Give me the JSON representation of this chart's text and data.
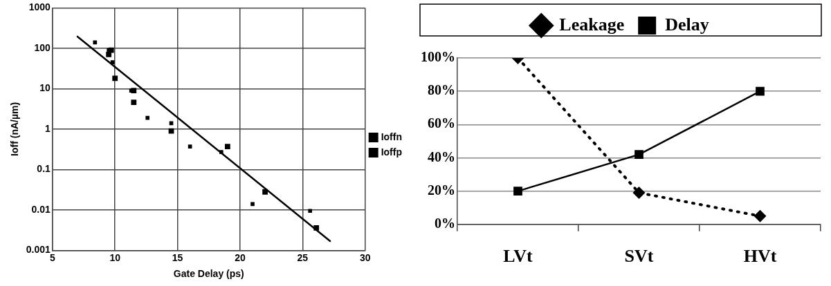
{
  "chart_data": [
    {
      "type": "scatter",
      "xlabel": "Gate Delay (ps)",
      "ylabel": "Ioff (nA/µm)",
      "log": "y",
      "grid": true,
      "legend": "right",
      "marker": "square",
      "xlim": [
        5,
        30
      ],
      "xticks": [
        5,
        10,
        15,
        20,
        25,
        30
      ],
      "ylim": [
        0.001,
        1000
      ],
      "yticks": [
        0.001,
        0.01,
        0.1,
        1,
        10,
        100,
        1000
      ],
      "series": [
        {
          "name": "Ioffn",
          "color": "#000000",
          "x": [
            8.4,
            9.5,
            9.8,
            11.3,
            12.6,
            14.5,
            16,
            18.5,
            21,
            25.6
          ],
          "values": [
            140,
            90,
            45,
            9,
            1.9,
            1.4,
            0.37,
            0.27,
            0.014,
            0.0095
          ]
        },
        {
          "name": "Ioffp",
          "color": "#000000",
          "x": [
            9.7,
            9.5,
            10,
            11.5,
            11.5,
            14.5,
            19,
            22,
            26.1
          ],
          "values": [
            90,
            70,
            18,
            9,
            4.6,
            0.9,
            0.37,
            0.028,
            0.0036
          ]
        },
        {
          "type": "line",
          "color": "#000000",
          "marker": "none",
          "line_style": "solid",
          "x": [
            7,
            27.2
          ],
          "values": [
            195,
            0.0017
          ]
        }
      ]
    },
    {
      "type": "line",
      "categories": [
        "LVt",
        "SVt",
        "HVt"
      ],
      "grid": "y",
      "legend": "top",
      "ylim": [
        0,
        100
      ],
      "yticks": [
        {
          "value": 0,
          "label": "0%"
        },
        {
          "value": 20,
          "label": "20%"
        },
        {
          "value": 40,
          "label": "40%"
        },
        {
          "value": 60,
          "label": "60%"
        },
        {
          "value": 80,
          "label": "80%"
        },
        {
          "value": 100,
          "label": "100%"
        }
      ],
      "series": [
        {
          "name": "Leakage",
          "color": "#000000",
          "marker": "diamond",
          "line_style": "dotted",
          "values": [
            100,
            19,
            5
          ]
        },
        {
          "name": "Delay",
          "color": "#000000",
          "marker": "square",
          "line_style": "solid",
          "values": [
            20,
            42,
            80
          ]
        }
      ]
    }
  ]
}
